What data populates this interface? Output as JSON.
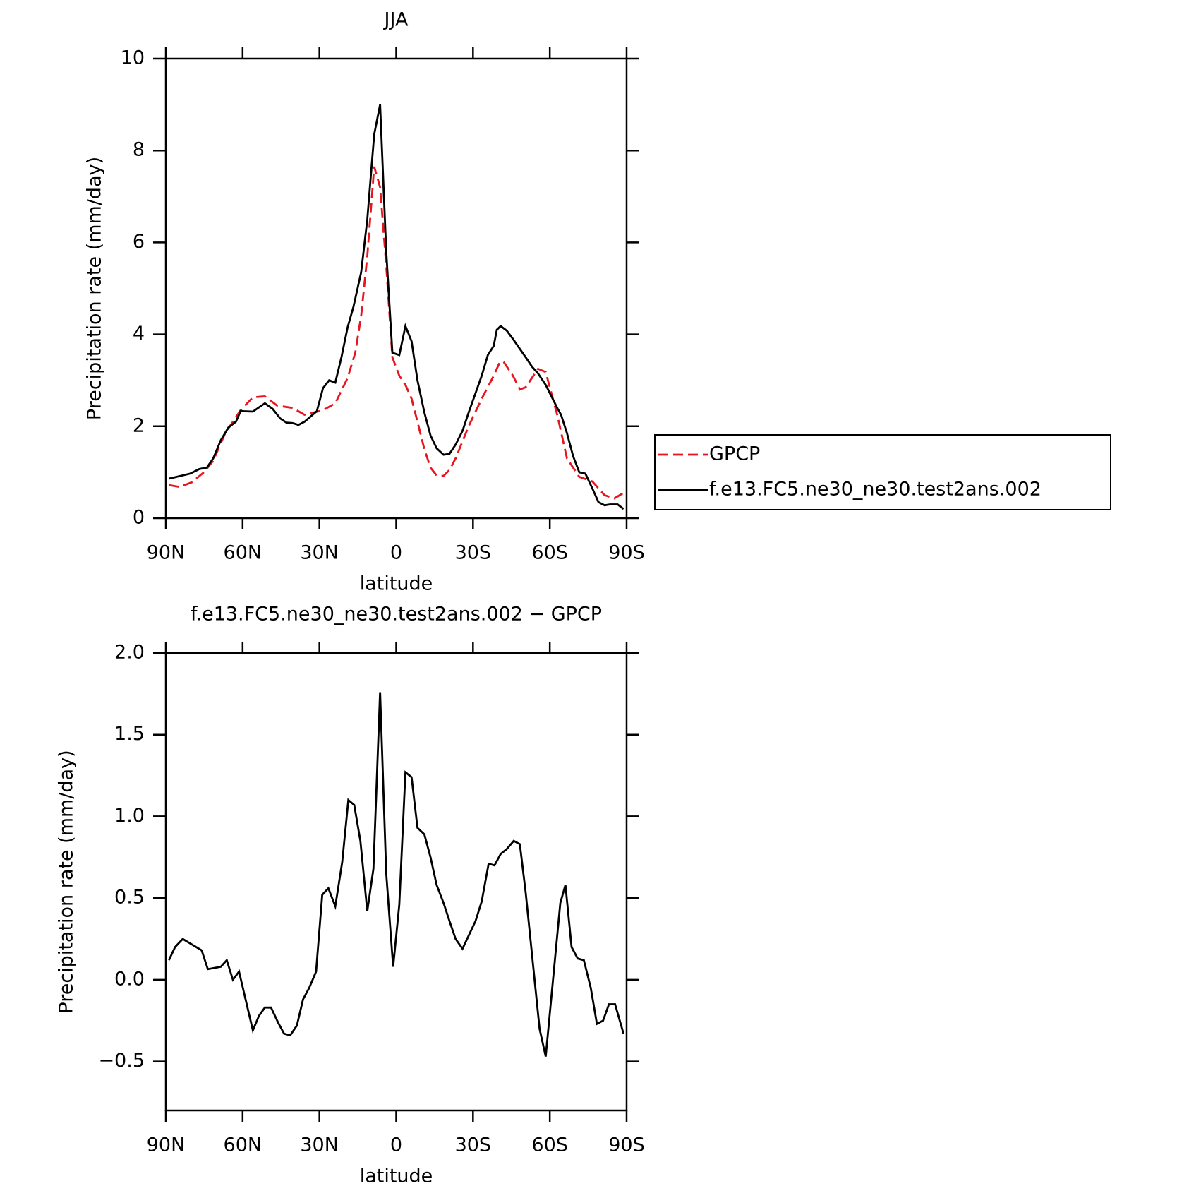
{
  "chart_data": [
    {
      "type": "line",
      "title": "JJA",
      "xlabel": "latitude",
      "ylabel": "Precipitation rate (mm/day)",
      "xlim": [
        90,
        -90
      ],
      "xticks": [
        {
          "value": 90,
          "label": "90N"
        },
        {
          "value": 60,
          "label": "60N"
        },
        {
          "value": 30,
          "label": "30N"
        },
        0,
        {
          "value": -30,
          "label": "30S"
        },
        {
          "value": -60,
          "label": "60S"
        },
        {
          "value": -90,
          "label": "90S"
        }
      ],
      "ylim": [
        0,
        10
      ],
      "yticks": [
        0,
        2,
        4,
        6,
        8,
        10
      ],
      "legend": "right",
      "series": [
        {
          "name": "GPCP",
          "color": "#e8141e",
          "style": "dashed",
          "x": [
            88.8,
            84.6,
            79.9,
            75.1,
            71.5,
            66.8,
            60.8,
            56,
            51.3,
            46.5,
            40.5,
            35.8,
            28.6,
            23.8,
            19,
            16,
            13.7,
            11.3,
            8.6,
            6.3,
            3.9,
            1.5,
            -1.2,
            -3.6,
            -6,
            -8.3,
            -11,
            -13.4,
            -15.8,
            -18.5,
            -20.8,
            -23.2,
            -28.3,
            -33.4,
            -38.1,
            -40.5,
            -42,
            -45.6,
            -48.3,
            -50.6,
            -55.4,
            -58.4,
            -62.9,
            -66.7,
            -71.5,
            -76.6,
            -81.4,
            -85.2,
            -88.8
          ],
          "values": [
            0.72,
            0.68,
            0.78,
            1.0,
            1.25,
            1.85,
            2.35,
            2.63,
            2.65,
            2.45,
            2.4,
            2.25,
            2.35,
            2.5,
            3.05,
            3.6,
            4.4,
            5.7,
            7.65,
            7.2,
            5.5,
            3.5,
            3.1,
            2.9,
            2.6,
            2.1,
            1.5,
            1.1,
            0.93,
            0.92,
            1.05,
            1.3,
            2.0,
            2.6,
            3.1,
            3.4,
            3.4,
            3.1,
            2.8,
            2.85,
            3.25,
            3.18,
            2.25,
            1.3,
            0.9,
            0.8,
            0.5,
            0.43,
            0.55
          ]
        },
        {
          "name": "f.e13.FC5.ne30_ne30.test2ans.002",
          "color": "#000000",
          "style": "solid",
          "x": [
            88.8,
            80.5,
            76.9,
            74,
            71.5,
            68.5,
            65.6,
            62.6,
            60.8,
            56,
            51.3,
            48.3,
            45.3,
            42.9,
            40.5,
            38.2,
            35.8,
            31,
            28.6,
            26.2,
            23.8,
            21.4,
            19,
            16.7,
            13.7,
            11.3,
            8.6,
            6.3,
            3.9,
            1.5,
            -1.2,
            -3.6,
            -6,
            -8.3,
            -11,
            -13.4,
            -15.8,
            -18.5,
            -20.8,
            -23.2,
            -25.9,
            -28.3,
            -33.4,
            -35.8,
            -38.1,
            -39.3,
            -40.8,
            -43.2,
            -45.6,
            -50.6,
            -53,
            -55.4,
            -58.4,
            -62.9,
            -64.4,
            -66.7,
            -69.1,
            -71.5,
            -73.9,
            -76.6,
            -79,
            -81.4,
            -83.5,
            -86.5,
            -88.8
          ],
          "values": [
            0.86,
            0.97,
            1.07,
            1.1,
            1.3,
            1.7,
            1.97,
            2.1,
            2.33,
            2.32,
            2.5,
            2.38,
            2.17,
            2.08,
            2.07,
            2.03,
            2.1,
            2.33,
            2.83,
            3.0,
            2.95,
            3.5,
            4.15,
            4.6,
            5.35,
            6.5,
            8.35,
            9.0,
            5.8,
            3.6,
            3.55,
            4.18,
            3.85,
            3.0,
            2.3,
            1.8,
            1.52,
            1.38,
            1.4,
            1.6,
            1.9,
            2.3,
            3.1,
            3.55,
            3.75,
            4.1,
            4.18,
            4.08,
            3.9,
            3.5,
            3.3,
            3.15,
            2.9,
            2.4,
            2.25,
            1.85,
            1.35,
            1.0,
            0.97,
            0.65,
            0.35,
            0.28,
            0.3,
            0.3,
            0.2
          ]
        }
      ]
    },
    {
      "type": "line",
      "title": "f.e13.FC5.ne30_ne30.test2ans.002 − GPCP",
      "xlabel": "latitude",
      "ylabel": "Precipitation rate (mm/day)",
      "xlim": [
        90,
        -90
      ],
      "xticks": [
        {
          "value": 90,
          "label": "90N"
        },
        {
          "value": 60,
          "label": "60N"
        },
        {
          "value": 30,
          "label": "30N"
        },
        0,
        {
          "value": -30,
          "label": "30S"
        },
        {
          "value": -60,
          "label": "60S"
        },
        {
          "value": -90,
          "label": "90S"
        }
      ],
      "ylim": [
        -0.8,
        2.0
      ],
      "yticks": [
        {
          "value": -0.5,
          "label": "−0.5"
        },
        {
          "value": 0,
          "label": "0.0"
        },
        0.5,
        {
          "value": 1,
          "label": "1.0"
        },
        1.5,
        {
          "value": 2,
          "label": "2.0"
        }
      ],
      "series": [
        {
          "color": "#000000",
          "style": "solid",
          "x": [
            88.8,
            86.4,
            83.4,
            76,
            73.6,
            68.5,
            66.2,
            63.8,
            61.4,
            58.4,
            56,
            53.6,
            51.3,
            48.9,
            46.2,
            43.8,
            41.4,
            38.8,
            36.4,
            34,
            31.3,
            28.9,
            26.5,
            23.8,
            21.1,
            18.7,
            16.4,
            14,
            11.3,
            8.9,
            6.3,
            3.9,
            1.2,
            -1.2,
            -3.6,
            -6,
            -8.3,
            -11,
            -13.4,
            -15.8,
            -18.5,
            -20.8,
            -23.2,
            -25.9,
            -28.3,
            -31,
            -33.4,
            -36.1,
            -38.4,
            -40.8,
            -43.2,
            -45.9,
            -48.3,
            -50.6,
            -56,
            -58.4,
            -64.1,
            -66.1,
            -68.5,
            -70.9,
            -73.3,
            -76,
            -78.4,
            -80.8,
            -83.1,
            -85.5,
            -88.8
          ],
          "values": [
            0.12,
            0.2,
            0.25,
            0.18,
            0.065,
            0.08,
            0.12,
            0.0,
            0.05,
            -0.15,
            -0.31,
            -0.22,
            -0.17,
            -0.17,
            -0.26,
            -0.33,
            -0.34,
            -0.28,
            -0.12,
            -0.05,
            0.05,
            0.52,
            0.56,
            0.45,
            0.72,
            1.1,
            1.07,
            0.85,
            0.42,
            0.68,
            1.76,
            0.65,
            0.08,
            0.46,
            1.27,
            1.24,
            0.93,
            0.89,
            0.75,
            0.58,
            0.47,
            0.36,
            0.25,
            0.19,
            0.27,
            0.36,
            0.48,
            0.71,
            0.7,
            0.77,
            0.8,
            0.85,
            0.83,
            0.53,
            -0.3,
            -0.47,
            0.47,
            0.58,
            0.2,
            0.13,
            0.12,
            -0.05,
            -0.27,
            -0.25,
            -0.15,
            -0.15,
            -0.33
          ]
        }
      ]
    }
  ]
}
